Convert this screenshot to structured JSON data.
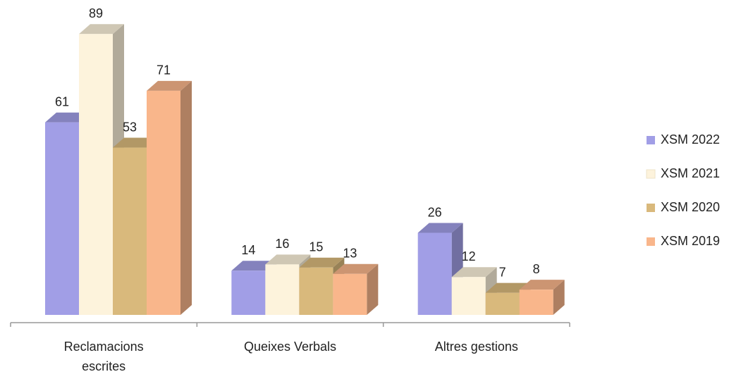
{
  "chart_data": {
    "type": "bar3d",
    "categories": [
      "Reclamacions escrites",
      "Queixes Verbals",
      "Altres gestions"
    ],
    "series": [
      {
        "name": "XSM 2022",
        "color": "#a19ee6",
        "values": [
          61,
          14,
          26
        ]
      },
      {
        "name": "XSM 2021",
        "color": "#fdf3dc",
        "values": [
          89,
          16,
          12
        ]
      },
      {
        "name": "XSM 2020",
        "color": "#d9b97c",
        "values": [
          53,
          15,
          7
        ]
      },
      {
        "name": "XSM 2019",
        "color": "#f9b68b",
        "values": [
          71,
          13,
          8
        ]
      }
    ],
    "ylim": [
      0,
      100
    ],
    "legend": "right"
  }
}
